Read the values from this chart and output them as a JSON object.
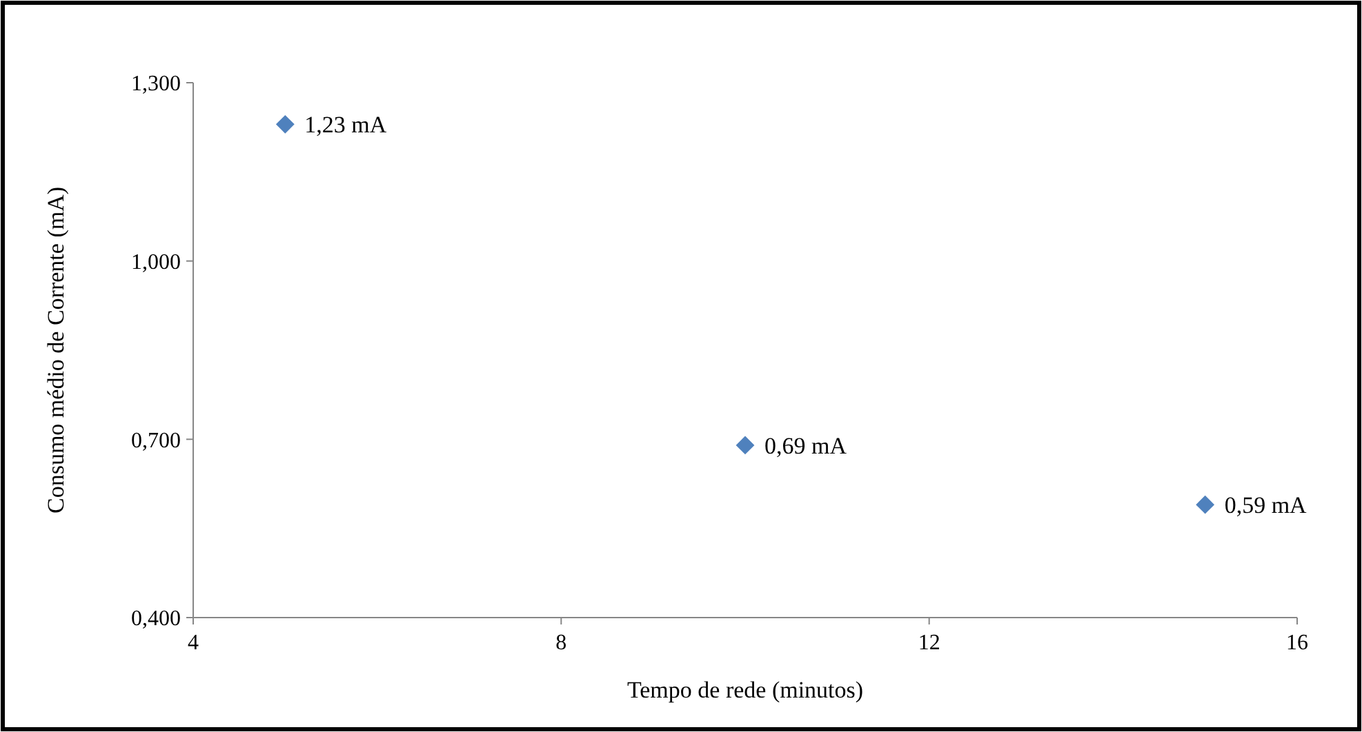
{
  "chart_data": {
    "type": "scatter",
    "x": [
      5,
      10,
      15
    ],
    "series": [
      {
        "color": "#4f81bd",
        "values": [
          1.23,
          0.69,
          0.59
        ],
        "value_labels": [
          "1,23 mA",
          "0,69 mA",
          "0,59 mA"
        ]
      }
    ],
    "xlabel": "Tempo de rede (minutos)",
    "ylabel": "Consumo médio de Corrente (mA)",
    "xlim": [
      4,
      16
    ],
    "xticks": [
      4,
      8,
      12,
      16
    ],
    "ylim": [
      0.4,
      1.3
    ],
    "yticks": [
      {
        "value": 0.4,
        "label": "0,400"
      },
      {
        "value": 0.7,
        "label": "0,700"
      },
      {
        "value": 1.0,
        "label": "1,000"
      },
      {
        "value": 1.3,
        "label": "1,300"
      }
    ],
    "marker": "diamond",
    "grid": false
  }
}
